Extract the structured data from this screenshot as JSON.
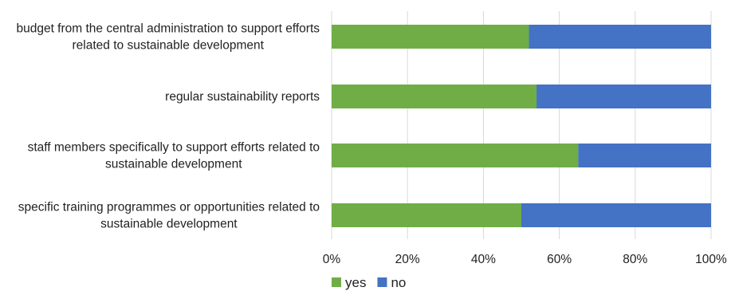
{
  "chart_data": {
    "type": "bar",
    "orientation": "horizontal",
    "stacked": true,
    "percent": true,
    "categories": [
      [
        "budget from the central administration to support efforts",
        "related to sustainable development"
      ],
      [
        "regular sustainability reports"
      ],
      [
        "staff members specifically to support efforts related to",
        "sustainable development"
      ],
      [
        "specific training programmes or opportunities related to",
        "sustainable development"
      ]
    ],
    "series": [
      {
        "name": "yes",
        "color": "#70ad47",
        "values": [
          52,
          54,
          65,
          50
        ]
      },
      {
        "name": "no",
        "color": "#4472c4",
        "values": [
          48,
          46,
          35,
          50
        ]
      }
    ],
    "xlim": [
      0,
      100
    ],
    "xticks": [
      0,
      20,
      40,
      60,
      80,
      100
    ],
    "xtick_labels": [
      "0%",
      "20%",
      "40%",
      "60%",
      "80%",
      "100%"
    ],
    "grid": true,
    "legend_position": "bottom"
  }
}
